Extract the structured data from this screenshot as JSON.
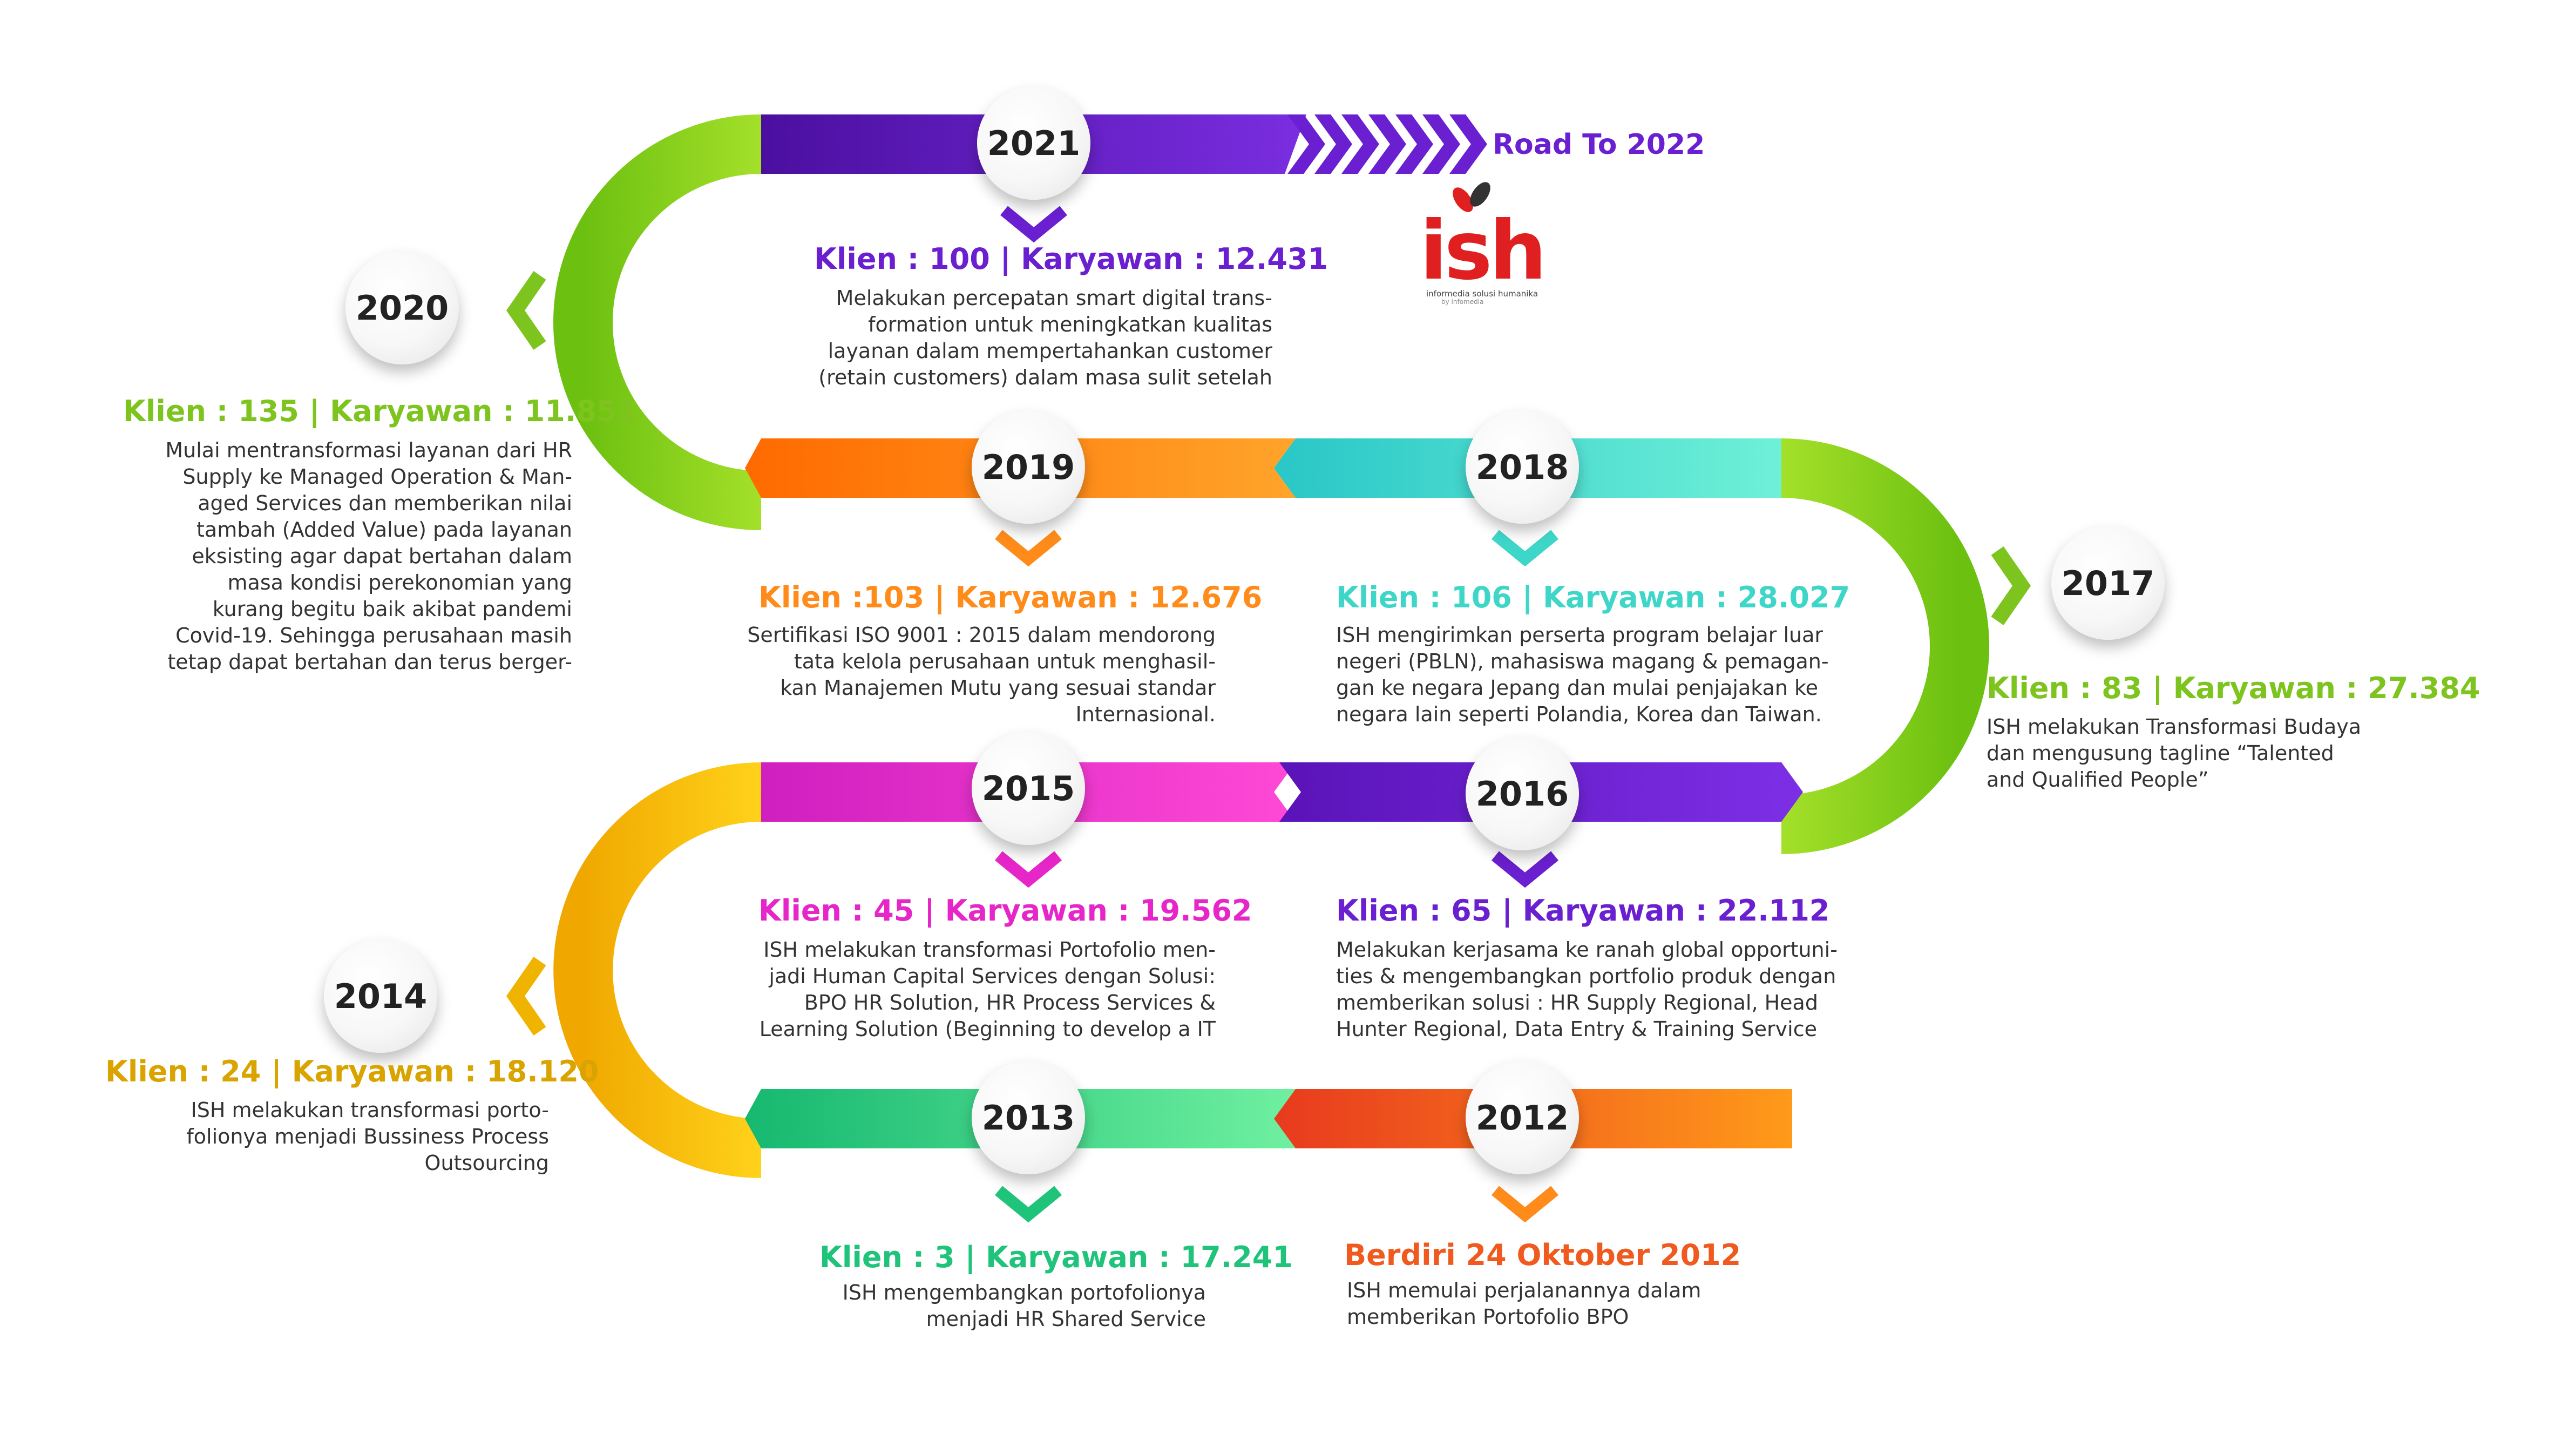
{
  "road_label": "Road To 2022",
  "logo": {
    "text": "ish",
    "tagline": "informedia solusi humanika",
    "byline": "by infomedia"
  },
  "colors": {
    "green": "#7ec41e",
    "purple": "#6a1fd0",
    "orange": "#ff8c1a",
    "cyan": "#3ed6c8",
    "magenta": "#e626c8",
    "gold": "#f0b400",
    "teal": "#1fc47a",
    "red": "#f05a1e"
  },
  "milestones": [
    {
      "year": "2021",
      "head": "Klien : 100  | Karyawan : 12.431",
      "lines": [
        "Melakukan percepatan smart digital trans-",
        "formation untuk meningkatkan kualitas",
        "layanan dalam mempertahankan customer",
        "(retain customers) dalam masa sulit setelah"
      ]
    },
    {
      "year": "2020",
      "head": "Klien : 135  |  Karyawan : 11.851",
      "lines": [
        "Mulai mentransformasi layanan dari HR",
        "Supply ke Managed Operation & Man-",
        "aged Services dan memberikan nilai",
        "tambah (Added Value) pada layanan",
        "eksisting agar dapat bertahan dalam",
        "masa kondisi perekonomian yang",
        "kurang begitu baik akibat pandemi",
        "Covid-19. Sehingga perusahaan masih",
        "tetap dapat bertahan dan terus berger-"
      ]
    },
    {
      "year": "2019",
      "head": "Klien :103  |  Karyawan : 12.676",
      "lines": [
        "Sertifikasi ISO 9001 : 2015 dalam mendorong",
        "tata kelola perusahaan untuk menghasil-",
        "kan Manajemen Mutu yang sesuai standar",
        "Internasional."
      ]
    },
    {
      "year": "2018",
      "head": "Klien : 106  |  Karyawan : 28.027",
      "lines": [
        "ISH mengirimkan perserta program belajar luar",
        "negeri (PBLN), mahasiswa magang & pemagan-",
        "gan ke negara Jepang dan mulai penjajakan ke",
        "negara lain seperti Polandia, Korea dan Taiwan."
      ]
    },
    {
      "year": "2017",
      "head": "Klien : 83  |  Karyawan : 27.384",
      "lines": [
        "ISH melakukan Transformasi Budaya",
        "dan mengusung tagline “Talented",
        "and Qualified People”"
      ]
    },
    {
      "year": "2015",
      "head": "Klien : 45  |  Karyawan : 19.562",
      "lines": [
        "ISH melakukan transformasi Portofolio men-",
        "jadi Human Capital Services dengan Solusi:",
        "BPO HR Solution, HR Process Services &",
        "Learning Solution (Beginning to develop a IT"
      ]
    },
    {
      "year": "2016",
      "head": "Klien : 65  | Karyawan : 22.112",
      "lines": [
        "Melakukan kerjasama ke ranah global opportuni-",
        "ties & mengembangkan portfolio produk dengan",
        "memberikan solusi : HR Supply Regional, Head",
        "Hunter Regional, Data Entry & Training Service"
      ]
    },
    {
      "year": "2014",
      "head": "Klien : 24  |  Karyawan : 18.120",
      "lines": [
        "ISH melakukan transformasi porto-",
        "folionya menjadi  Bussiness Process",
        "Outsourcing"
      ]
    },
    {
      "year": "2013",
      "head": "Klien : 3  | Karyawan : 17.241",
      "lines": [
        "ISH mengembangkan portofolionya",
        "menjadi HR Shared Service"
      ]
    },
    {
      "year": "2012",
      "head": "Berdiri 24 Oktober 2012",
      "lines": [
        "ISH   memulai   perjalanannya   dalam",
        "memberikan Portofolio BPO"
      ]
    }
  ]
}
